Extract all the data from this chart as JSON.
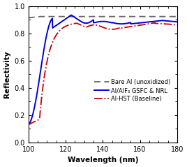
{
  "xlim": [
    100,
    180
  ],
  "ylim": [
    0.0,
    1.0
  ],
  "xlabel": "Wavelength (nm)",
  "ylabel": "Reflectivity",
  "xticks": [
    100,
    120,
    140,
    160,
    180
  ],
  "yticks": [
    0.0,
    0.2,
    0.4,
    0.6,
    0.8,
    1.0
  ],
  "bare_al": {
    "label": "Bare Al (unoxidized)",
    "color": "#666666",
    "linestyle": "dashed",
    "linewidth": 1.3,
    "dashes": [
      5,
      3
    ]
  },
  "gsfc_nrl": {
    "label": "Al/AlF₃ GSFC & NRL",
    "color": "#0000dd",
    "linestyle": "solid",
    "linewidth": 1.4
  },
  "hst": {
    "label": "Al-HST (Baseline)",
    "color": "#cc0000",
    "linestyle": "dashdot",
    "linewidth": 1.3
  },
  "figsize": [
    2.68,
    2.39
  ],
  "dpi": 100
}
